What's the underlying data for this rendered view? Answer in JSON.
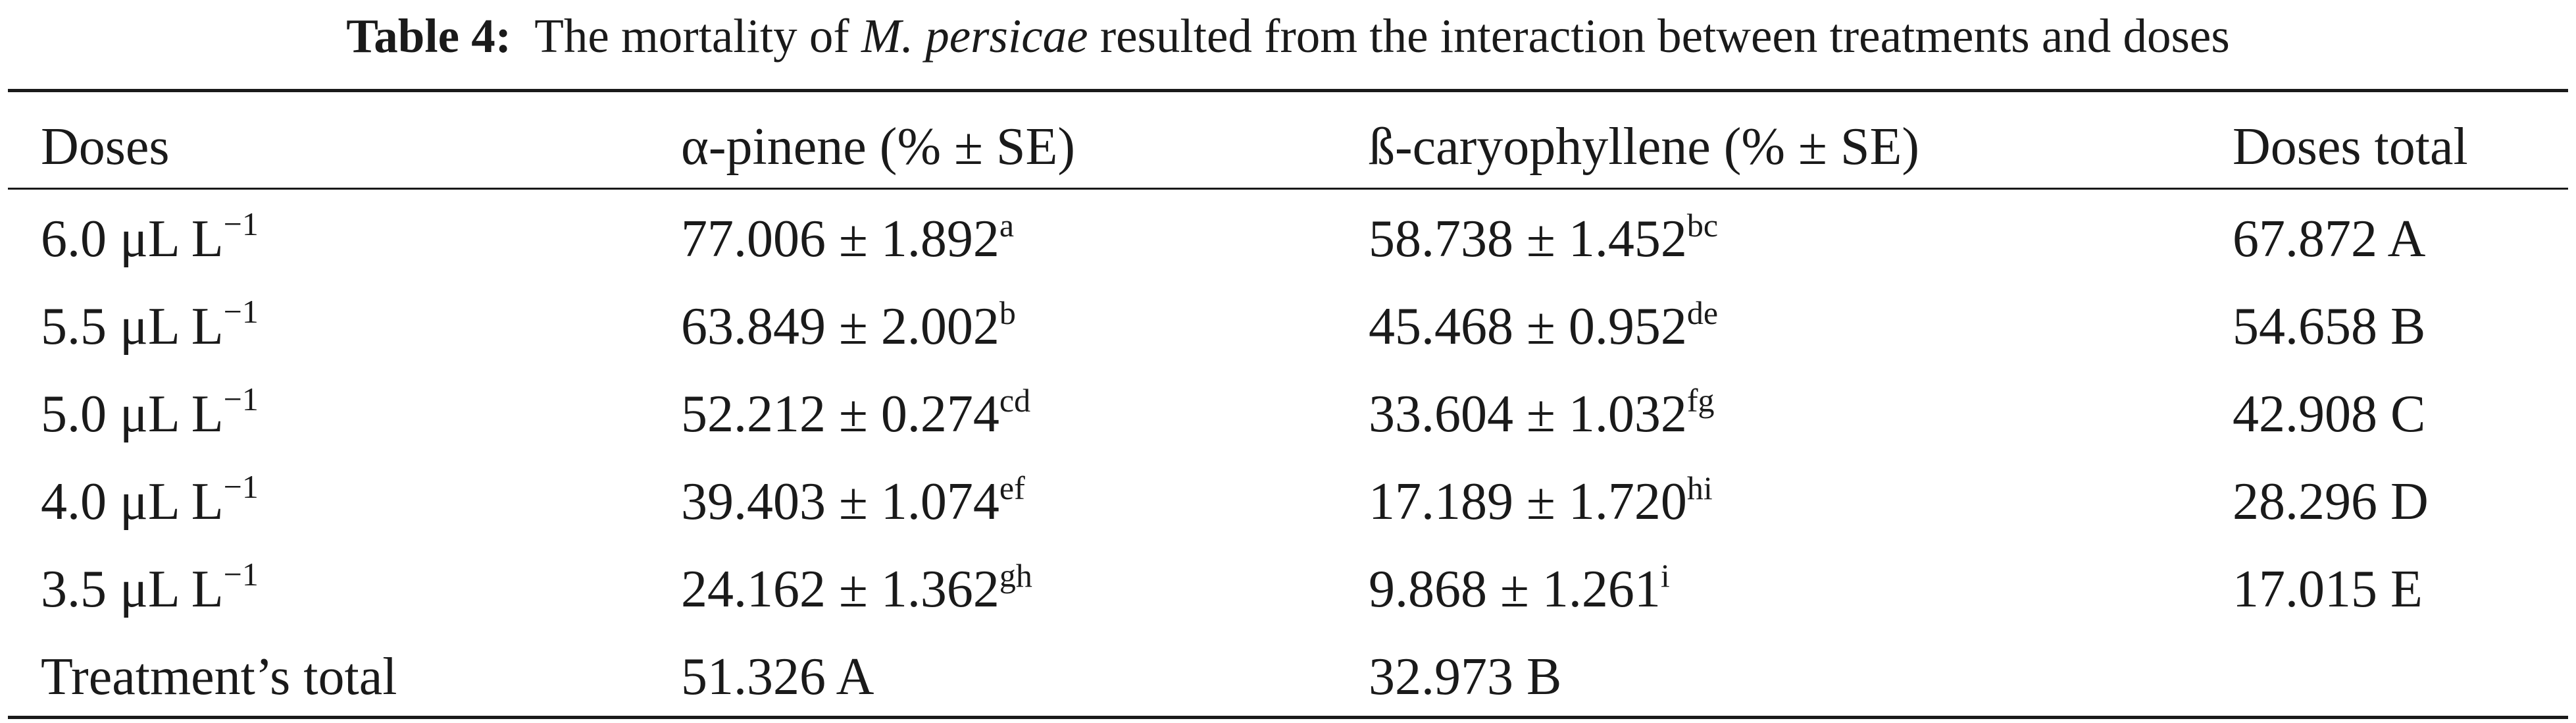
{
  "caption": {
    "label": "Table 4:",
    "text_before": "The mortality of",
    "species": "M. persicae",
    "text_after": "resulted from the interaction between treatments and doses"
  },
  "table": {
    "headers": [
      "Doses",
      "α-pinene (% ± SE)",
      "ß-caryophyllene (% ± SE)",
      "Doses total"
    ],
    "rows": [
      {
        "dose": "6.0 μL L",
        "dose_exp": "−1",
        "alpha": "77.006 ± 1.892",
        "alpha_sup": "a",
        "beta": "58.738 ± 1.452",
        "beta_sup": "bc",
        "total": "67.872 A"
      },
      {
        "dose": "5.5 μL L",
        "dose_exp": "−1",
        "alpha": "63.849 ± 2.002",
        "alpha_sup": "b",
        "beta": "45.468 ± 0.952",
        "beta_sup": "de",
        "total": "54.658 B"
      },
      {
        "dose": "5.0 μL L",
        "dose_exp": "−1",
        "alpha": "52.212 ± 0.274",
        "alpha_sup": "cd",
        "beta": "33.604 ± 1.032",
        "beta_sup": "fg",
        "total": "42.908 C"
      },
      {
        "dose": "4.0 μL L",
        "dose_exp": "−1",
        "alpha": "39.403 ± 1.074",
        "alpha_sup": "ef",
        "beta": "17.189 ± 1.720",
        "beta_sup": "hi",
        "total": "28.296 D"
      },
      {
        "dose": "3.5 μL L",
        "dose_exp": "−1",
        "alpha": "24.162 ± 1.362",
        "alpha_sup": "gh",
        "beta": "9.868 ± 1.261",
        "beta_sup": "i",
        "total": "17.015 E"
      }
    ],
    "footer": {
      "label": "Treatment’s total",
      "alpha_total": "51.326 A",
      "beta_total": "32.973 B"
    }
  }
}
